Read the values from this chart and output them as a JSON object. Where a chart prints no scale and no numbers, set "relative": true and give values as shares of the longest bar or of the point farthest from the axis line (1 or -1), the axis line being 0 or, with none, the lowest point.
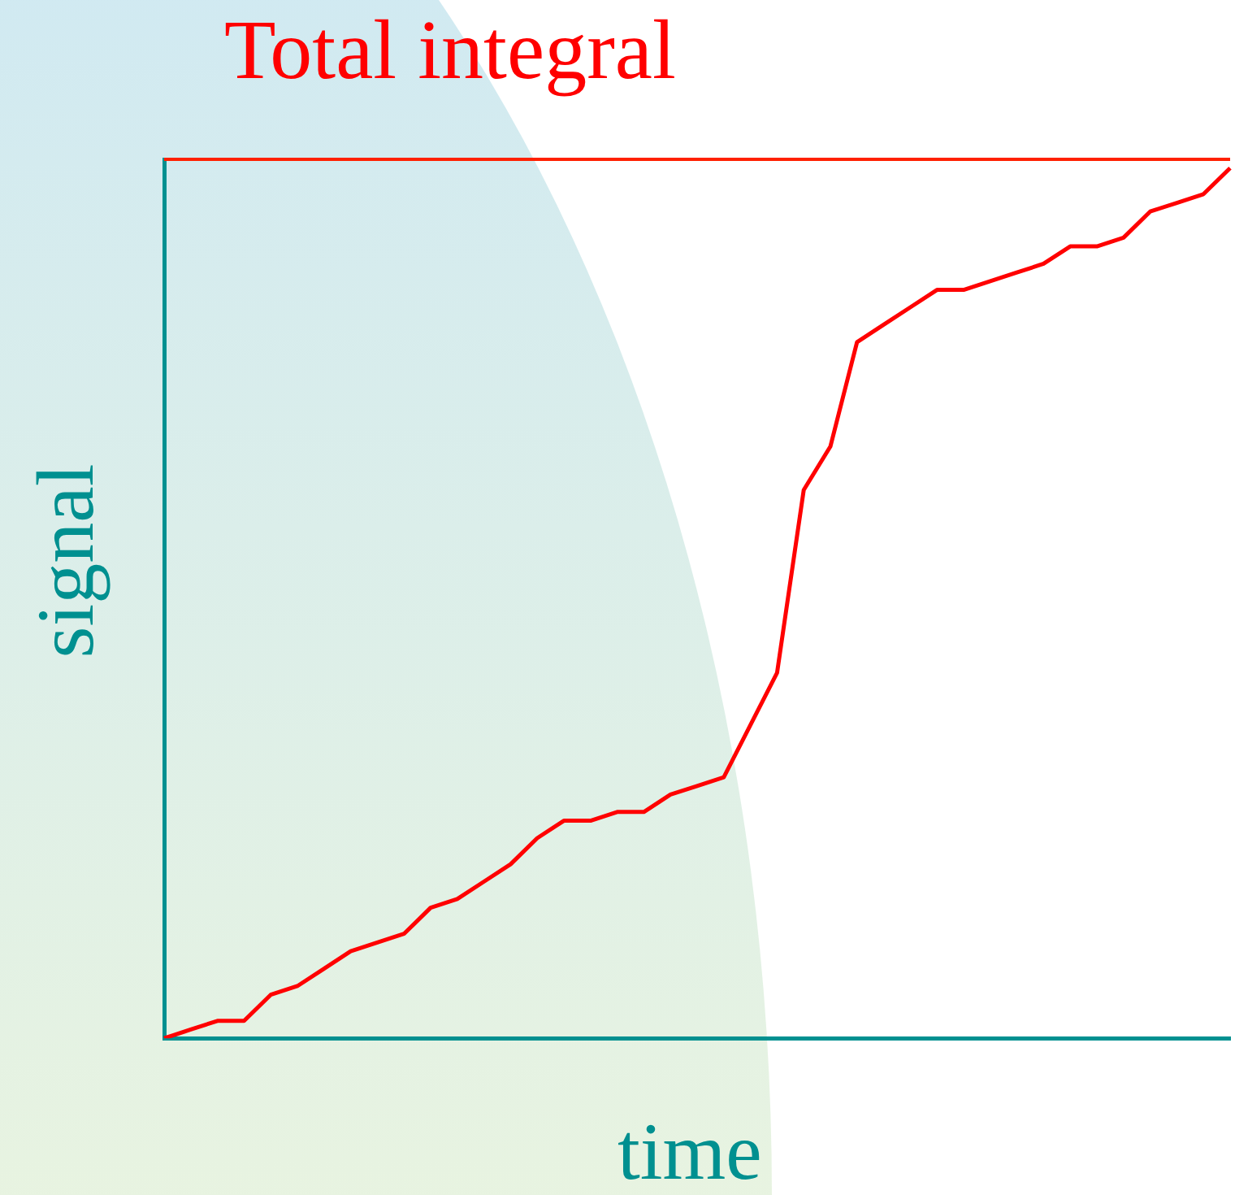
{
  "chart_data": {
    "type": "line",
    "title": "Total integral",
    "xlabel": "time",
    "ylabel": "signal",
    "relative": true,
    "legend": false,
    "grid": false,
    "marker": "none",
    "categories": [
      null,
      null,
      null,
      null,
      null,
      null,
      null,
      null,
      null,
      null,
      null,
      null,
      null,
      null,
      null,
      null,
      null,
      null,
      null,
      null,
      null,
      null,
      null,
      null,
      null,
      null,
      null,
      null,
      null,
      null,
      null,
      null,
      null,
      null,
      null,
      null,
      null,
      null,
      null,
      null,
      null
    ],
    "series": [
      {
        "color": "#ff0000",
        "values": [
          0.0,
          0.01,
          0.02,
          0.02,
          0.05,
          0.06,
          0.08,
          0.1,
          0.11,
          0.12,
          0.15,
          0.16,
          0.18,
          0.2,
          0.23,
          0.25,
          0.25,
          0.26,
          0.26,
          0.28,
          0.29,
          0.3,
          0.36,
          0.42,
          0.63,
          0.68,
          0.8,
          0.82,
          0.84,
          0.86,
          0.86,
          0.87,
          0.88,
          0.89,
          0.91,
          0.91,
          0.92,
          0.95,
          0.96,
          0.97,
          1
        ]
      }
    ],
    "ref_lines": [
      {
        "axis": "y",
        "value": 1.01,
        "color": "#ff2000"
      }
    ]
  }
}
